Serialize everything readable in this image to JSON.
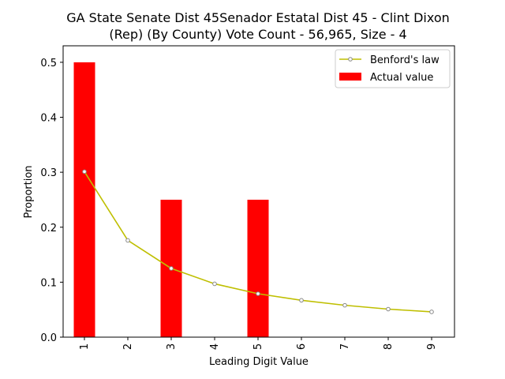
{
  "chart_data": {
    "type": "bar",
    "title": "GA State Senate Dist 45Senador Estatal Dist 45 - Clint Dixon (Rep) (By County) Vote Count - 56,965, Size - 4",
    "title_lines": [
      "GA State Senate Dist 45Senador Estatal Dist 45 - Clint Dixon",
      "(Rep) (By County) Vote Count - 56,965, Size - 4"
    ],
    "xlabel": "Leading Digit Value",
    "ylabel": "Proportion",
    "categories": [
      "1",
      "2",
      "3",
      "4",
      "5",
      "6",
      "7",
      "8",
      "9"
    ],
    "ylim": [
      0,
      0.53
    ],
    "yticks": [
      "0.0",
      "0.1",
      "0.2",
      "0.3",
      "0.4",
      "0.5"
    ],
    "grid": false,
    "legend_position": "top-right",
    "series": [
      {
        "name": "Benford's law",
        "kind": "line",
        "color": "#bfbf00",
        "values": [
          0.301,
          0.176,
          0.125,
          0.097,
          0.079,
          0.067,
          0.058,
          0.051,
          0.046
        ]
      },
      {
        "name": "Actual value",
        "kind": "bar",
        "color": "#ff0000",
        "values": [
          0.5,
          0,
          0.25,
          0,
          0.25,
          0,
          0,
          0,
          0
        ]
      }
    ]
  }
}
